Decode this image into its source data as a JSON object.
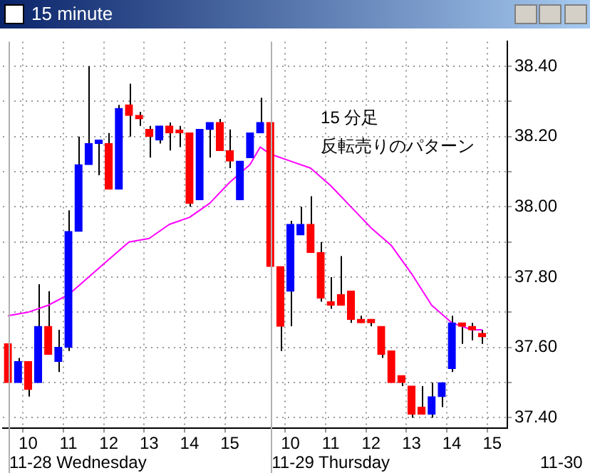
{
  "chart_data": {
    "type": "candlestick",
    "title": "15 minute",
    "categories": [
      null,
      null,
      "10",
      null,
      null,
      null,
      "11",
      null,
      null,
      null,
      "12",
      null,
      null,
      null,
      "13",
      null,
      null,
      null,
      "14",
      null,
      null,
      null,
      "15",
      null,
      null,
      null,
      null,
      null,
      "10",
      null,
      null,
      null,
      "11",
      null,
      null,
      null,
      "12",
      null,
      null,
      null,
      "13",
      null,
      null,
      null,
      "14",
      null,
      null,
      null,
      "15",
      null
    ],
    "ohlc": [
      [
        37.61,
        37.61,
        37.5,
        37.5
      ],
      [
        37.5,
        37.57,
        37.5,
        37.56
      ],
      [
        37.56,
        37.56,
        37.46,
        37.48
      ],
      [
        37.5,
        37.78,
        37.5,
        37.66
      ],
      [
        37.66,
        37.76,
        37.58,
        37.58
      ],
      [
        37.56,
        37.65,
        37.53,
        37.6
      ],
      [
        37.6,
        37.99,
        37.59,
        37.93
      ],
      [
        37.93,
        38.2,
        37.93,
        38.12
      ],
      [
        38.12,
        38.4,
        38.12,
        38.18
      ],
      [
        38.18,
        38.19,
        38.09,
        38.19
      ],
      [
        38.18,
        38.21,
        38.05,
        38.05
      ],
      [
        38.05,
        38.29,
        38.05,
        38.28
      ],
      [
        38.29,
        38.35,
        38.2,
        38.26
      ],
      [
        38.26,
        38.27,
        38.23,
        38.25
      ],
      [
        38.22,
        38.23,
        38.14,
        38.2
      ],
      [
        38.19,
        38.23,
        38.18,
        38.23
      ],
      [
        38.23,
        38.24,
        38.16,
        38.21
      ],
      [
        38.21,
        38.23,
        38.17,
        38.21
      ],
      [
        38.21,
        38.21,
        38.0,
        38.01
      ],
      [
        38.02,
        38.22,
        38.02,
        38.22
      ],
      [
        38.22,
        38.24,
        38.14,
        38.24
      ],
      [
        38.24,
        38.25,
        38.16,
        38.16
      ],
      [
        38.16,
        38.22,
        38.11,
        38.13
      ],
      [
        38.02,
        38.13,
        38.02,
        38.13
      ],
      [
        38.14,
        38.21,
        38.14,
        38.21
      ],
      [
        38.21,
        38.31,
        38.21,
        38.24
      ],
      [
        38.24,
        38.24,
        37.83,
        37.83
      ],
      [
        37.83,
        37.83,
        37.59,
        37.66
      ],
      [
        37.76,
        37.96,
        37.66,
        37.95
      ],
      [
        37.92,
        38.0,
        37.92,
        37.95
      ],
      [
        37.95,
        38.03,
        37.87,
        37.87
      ],
      [
        37.87,
        37.9,
        37.73,
        37.74
      ],
      [
        37.73,
        37.8,
        37.71,
        37.72
      ],
      [
        37.75,
        37.86,
        37.72,
        37.72
      ],
      [
        37.76,
        37.76,
        37.67,
        37.68
      ],
      [
        37.68,
        37.69,
        37.67,
        37.67
      ],
      [
        37.68,
        37.68,
        37.66,
        37.67
      ],
      [
        37.66,
        37.66,
        37.57,
        37.58
      ],
      [
        37.59,
        37.59,
        37.5,
        37.5
      ],
      [
        37.52,
        37.52,
        37.49,
        37.5
      ],
      [
        37.49,
        37.49,
        37.4,
        37.41
      ],
      [
        37.43,
        37.49,
        37.41,
        37.41
      ],
      [
        37.41,
        37.5,
        37.4,
        37.46
      ],
      [
        37.46,
        37.5,
        37.43,
        37.5
      ],
      [
        37.54,
        37.69,
        37.53,
        37.67
      ],
      [
        37.67,
        37.67,
        37.61,
        37.66
      ],
      [
        37.66,
        37.67,
        37.62,
        37.65
      ],
      [
        37.64,
        37.65,
        37.61,
        37.63
      ],
      null,
      null
    ],
    "colors": [
      "#ff0000",
      "#0000ff",
      "#ff0000",
      "#0000ff",
      "#ff0000",
      "#0000ff",
      "#0000ff",
      "#0000ff",
      "#0000ff",
      "#0000ff",
      "#ff0000",
      "#0000ff",
      "#ff0000",
      "#ff0000",
      "#ff0000",
      "#0000ff",
      "#ff0000",
      "#ff0000",
      "#ff0000",
      "#0000ff",
      "#0000ff",
      "#ff0000",
      "#ff0000",
      "#0000ff",
      "#0000ff",
      "#0000ff",
      "#ff0000",
      "#ff0000",
      "#0000ff",
      "#0000ff",
      "#ff0000",
      "#ff0000",
      "#ff0000",
      "#ff0000",
      "#ff0000",
      "#ff0000",
      "#ff0000",
      "#ff0000",
      "#ff0000",
      "#ff0000",
      "#ff0000",
      "#ff0000",
      "#0000ff",
      "#0000ff",
      "#0000ff",
      "#ff0000",
      "#ff0000",
      "#ff0000",
      null,
      null
    ],
    "series": [
      {
        "type": "line",
        "color": "#ff00ff",
        "values": [
          37.69,
          null,
          37.7,
          null,
          37.72,
          null,
          37.75,
          null,
          37.8,
          null,
          37.85,
          null,
          37.9,
          null,
          37.91,
          null,
          37.95,
          null,
          37.97,
          null,
          38.01,
          null,
          38.07,
          null,
          38.12,
          38.17,
          38.15,
          null,
          38.13,
          null,
          38.11,
          null,
          38.06,
          null,
          38.0,
          null,
          37.94,
          null,
          37.89,
          null,
          37.81,
          null,
          37.72,
          null,
          37.67,
          null,
          37.65,
          37.65,
          null,
          null
        ]
      }
    ],
    "ylim": [
      37.37,
      38.47
    ],
    "yticks": [
      {
        "value": 37.4,
        "label": "37.40"
      },
      {
        "value": 37.5,
        "label": null
      },
      {
        "value": 37.6,
        "label": "37.60"
      },
      {
        "value": 37.7,
        "label": null
      },
      {
        "value": 37.8,
        "label": "37.80"
      },
      {
        "value": 37.9,
        "label": null
      },
      {
        "value": 38.0,
        "label": "38.00"
      },
      {
        "value": 38.1,
        "label": null
      },
      {
        "value": 38.2,
        "label": "38.20"
      },
      {
        "value": 38.3,
        "label": null
      },
      {
        "value": 38.4,
        "label": "38.40"
      }
    ],
    "grid": true,
    "legend": false,
    "marker": "none",
    "line_style": "solid",
    "annotations": [
      "15 分足",
      "反転売りのパターン",
      "11-28 Wednesday",
      "11-29 Thursday",
      "11-30"
    ]
  }
}
